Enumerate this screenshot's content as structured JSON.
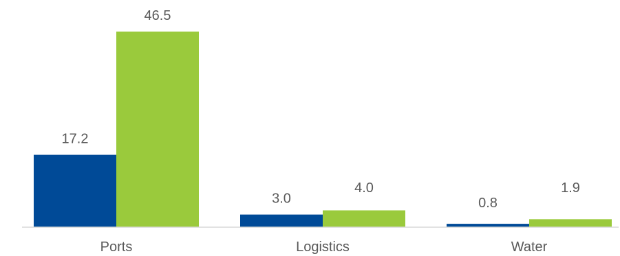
{
  "chart_data": {
    "type": "bar",
    "categories": [
      "Ports",
      "Logistics",
      "Water"
    ],
    "series": [
      {
        "values": [
          17.2,
          3.0,
          0.8
        ],
        "color": "#004A97"
      },
      {
        "values": [
          46.5,
          4.0,
          1.9
        ],
        "color": "#9ACA3C"
      }
    ],
    "data_labels": [
      [
        "17.2",
        "3.0",
        "0.8"
      ],
      [
        "46.5",
        "4.0",
        "1.9"
      ]
    ],
    "ylim": [
      0,
      46.5
    ],
    "grid": false,
    "legend": "none",
    "axis_color": "#D9D9D9"
  }
}
